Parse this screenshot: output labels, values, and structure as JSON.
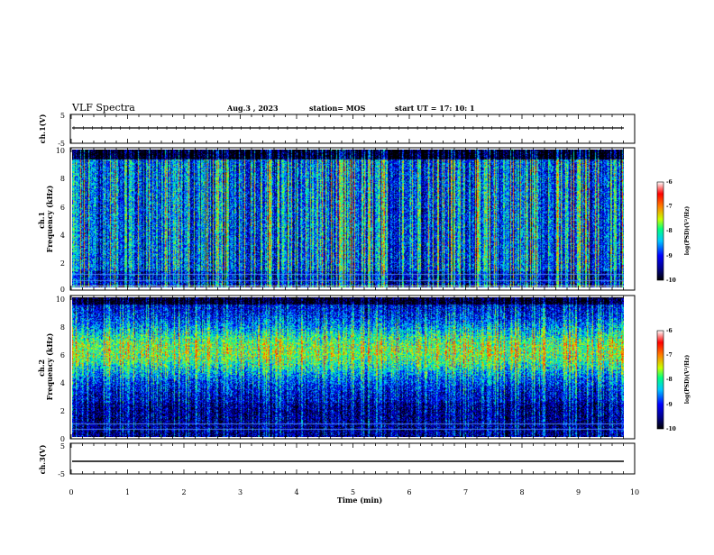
{
  "header": {
    "title": "VLF Spectra",
    "date": "Aug.3  , 2023",
    "station": "station= MOS",
    "start": "start  UT  =   17: 10: 1"
  },
  "chart_data": [
    {
      "name": "ch1-waveform",
      "type": "line",
      "ylabel": "ch.1(V)",
      "ylim": [
        -5,
        5
      ],
      "ytick_labels": [
        "5",
        "-5"
      ],
      "xlim": [
        0,
        10
      ],
      "y_level": 0.2
    },
    {
      "name": "ch1-spectrogram",
      "type": "heatmap",
      "ylabel": "ch.1\nFrequency (kHz)",
      "ylabel_lines": [
        "ch.1",
        "Frequency (kHz)"
      ],
      "ylim": [
        0,
        10
      ],
      "ytick_labels": [
        "0",
        "2",
        "4",
        "6",
        "8",
        "10"
      ],
      "xlim": [
        0,
        9.85
      ],
      "colorbar": {
        "label": "log(PSD)(V²/Hz)",
        "range": [
          -10,
          -6
        ],
        "tick_labels": [
          "-6",
          "-7",
          "-8",
          "-9",
          "-10"
        ]
      },
      "dominant_band_khz": [
        0,
        10
      ],
      "intensity_peak": -7.5
    },
    {
      "name": "ch2-spectrogram",
      "type": "heatmap",
      "ylabel": "ch.2\nFrequency (kHz)",
      "ylabel_lines": [
        "ch.2",
        "Frequency (kHz)"
      ],
      "ylim": [
        0,
        10
      ],
      "ytick_labels": [
        "0",
        "2",
        "4",
        "6",
        "8",
        "10"
      ],
      "xlim": [
        0,
        9.85
      ],
      "colorbar": {
        "label": "log(PSD)(V²/Hz)",
        "range": [
          -10,
          -6
        ],
        "tick_labels": [
          "-6",
          "-7",
          "-8",
          "-9",
          "-10"
        ]
      },
      "dominant_band_khz": [
        4,
        8.5
      ],
      "intensity_peak": -7
    },
    {
      "name": "ch3-waveform",
      "type": "line",
      "ylabel": "ch.3(V)",
      "ylim": [
        -5,
        5
      ],
      "ytick_labels": [
        "5",
        "-5"
      ],
      "xlim": [
        0,
        10
      ],
      "y_level": -1.5
    }
  ],
  "x_axis": {
    "label": "Time  (min)",
    "range": [
      0,
      10
    ],
    "tick_labels": [
      "0",
      "1",
      "2",
      "3",
      "4",
      "5",
      "6",
      "7",
      "8",
      "9",
      "10"
    ]
  },
  "colors": {
    "background": "#ffffff",
    "axes": "#000000",
    "colormap": [
      "#000000",
      "#00008c",
      "#0000ff",
      "#00c8ff",
      "#00ff80",
      "#c8ff00",
      "#ff8000",
      "#ff0000",
      "#ffffff"
    ]
  }
}
